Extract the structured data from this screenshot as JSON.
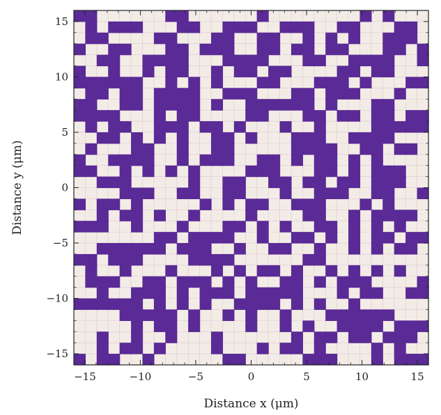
{
  "chart_data": {
    "type": "heatmap",
    "title": "",
    "xlabel": "Distance x (μm)",
    "ylabel": "Distance y (μm)",
    "xlim": [
      -16,
      16
    ],
    "ylim": [
      -16,
      16
    ],
    "xticks": [
      -15,
      -10,
      -5,
      0,
      5,
      10,
      15
    ],
    "yticks": [
      -15,
      -10,
      -5,
      0,
      5,
      10,
      15
    ],
    "xtick_labels": [
      "−15",
      "−10",
      "−5",
      "0",
      "5",
      "10",
      "15"
    ],
    "ytick_labels": [
      "−15",
      "−10",
      "−5",
      "0",
      "5",
      "10",
      "15"
    ],
    "cell_size": 1,
    "grid": true,
    "colors": {
      "filled": "#5a2a96",
      "empty": "#f3ece6",
      "gridline": "#d9c7d6",
      "frame": "#222222"
    },
    "rows_top_to_bottom": [
      "1100000011000000100000000101000",
      "0101110001100111001110011000110",
      "0110000110001100110010101001110",
      "1001100011011100110110110001101",
      "0011001111000111100011001111001",
      "1001001011001011011000011011000",
      "1111110010101000110001110100011",
      "0110110111100111000110111000100",
      "1100110111101001111110100011000",
      "1111000101100001100011011011011",
      "0101100111011010001001000011111",
      "0011010101001101000111001111000",
      "0100011001001100000111100110110",
      "1001111001011100110101101010000",
      "1100101010100001110001101011100",
      "0011100000100110011011011011100",
      "0000111001100110001001110011001",
      "1011010000010101100111000101000",
      "0010110100100001000011001011110",
      "1110010001000110101001101010100",
      "0000000110111100100110101011011",
      "0011111101110010011001001010110",
      "1101110000111100000011000000000",
      "0100100010001010110100101010100",
      "0111001101110101001101011100001",
      "0010011101011101111100010110011",
      "1111110101010011110101001000000",
      "0000111110100101001000111111000",
      "0000010110100001001010011110111",
      "0010010010001000000101101101110",
      "0010110100001000101101000010100",
      "1011001000000110000011100010111"
    ]
  }
}
